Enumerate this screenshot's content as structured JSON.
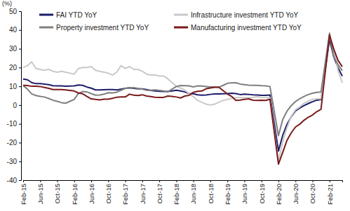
{
  "chart_data": {
    "type": "line",
    "y_label": "(%)",
    "categories": [
      "Feb-15",
      null,
      null,
      null,
      "Jun-15",
      null,
      null,
      null,
      "Oct-15",
      null,
      null,
      null,
      "Feb-16",
      null,
      null,
      null,
      "Jun-16",
      null,
      null,
      null,
      "Oct-16",
      null,
      null,
      null,
      "Feb-17",
      null,
      null,
      null,
      "Jun-17",
      null,
      null,
      null,
      "Oct-17",
      null,
      null,
      null,
      "Feb-18",
      null,
      null,
      null,
      "Jun-18",
      null,
      null,
      null,
      "Oct-18",
      null,
      null,
      null,
      "Feb-19",
      null,
      null,
      null,
      "Jun-19",
      null,
      null,
      null,
      "Oct-19",
      null,
      null,
      null,
      "Feb-20",
      null,
      null,
      null,
      "Jun-20",
      null,
      null,
      null,
      "Oct-20",
      null,
      null,
      null,
      "Feb-21",
      null,
      null,
      null
    ],
    "series": [
      {
        "name": "FAI YTD YoY",
        "color": "#1c1c6b",
        "values": [
          13.9,
          13.5,
          12.0,
          11.4,
          11.4,
          11.2,
          10.9,
          10.3,
          10.2,
          10.2,
          10.0,
          10.1,
          10.2,
          10.7,
          10.5,
          9.6,
          9.0,
          8.1,
          8.1,
          8.2,
          8.3,
          8.3,
          8.1,
          8.5,
          8.9,
          9.2,
          8.9,
          8.6,
          8.6,
          8.3,
          7.8,
          7.5,
          7.3,
          7.2,
          7.2,
          7.5,
          7.9,
          7.5,
          7.0,
          6.1,
          6.0,
          5.5,
          5.3,
          5.4,
          5.7,
          5.9,
          5.9,
          6.0,
          6.1,
          6.3,
          6.1,
          5.6,
          5.8,
          5.7,
          5.5,
          5.4,
          5.2,
          5.2,
          5.4,
          -9.5,
          -24.5,
          -16.1,
          -10.3,
          -6.3,
          -3.1,
          -1.6,
          -0.3,
          0.8,
          1.8,
          2.6,
          2.9,
          19.0,
          35.0,
          25.6,
          19.9,
          15.4
        ]
      },
      {
        "name": "Infrastructure investment YTD YoY",
        "color": "#c9c9c9",
        "values": [
          20,
          21,
          23,
          19.5,
          19,
          18.5,
          19,
          18,
          17.5,
          18,
          17.5,
          17,
          16.5,
          19.5,
          20,
          20,
          20.5,
          18.5,
          18,
          17.5,
          17,
          16,
          17.5,
          21,
          19.5,
          20.5,
          19,
          19,
          18,
          16.5,
          16,
          16,
          15.5,
          15.5,
          14,
          12,
          10,
          9,
          8,
          6,
          4.5,
          2.5,
          1.5,
          0.5,
          0,
          0.5,
          1.5,
          2.5,
          3,
          3.5,
          4,
          4,
          4,
          4,
          4,
          4.5,
          4,
          4,
          4,
          -13,
          -30,
          -19.5,
          -12,
          -6,
          -2.5,
          -1,
          1,
          2,
          3,
          3.3,
          3.4,
          20,
          36.6,
          29.7,
          18.4,
          11.8
        ]
      },
      {
        "name": "Property investment YTD YoY",
        "color": "#7f7f7f",
        "values": [
          10.4,
          8.5,
          6.0,
          5.1,
          4.6,
          4.3,
          3.5,
          2.6,
          2.0,
          1.3,
          1.0,
          2.0,
          3.0,
          6.2,
          7.2,
          7.0,
          6.1,
          5.3,
          5.4,
          5.8,
          6.6,
          6.5,
          6.9,
          7.9,
          8.9,
          9.1,
          9.3,
          8.8,
          8.5,
          7.9,
          7.9,
          8.1,
          7.8,
          7.5,
          7.0,
          8.5,
          9.9,
          10.4,
          10.3,
          10.2,
          9.7,
          10.2,
          10.1,
          9.9,
          9.7,
          9.7,
          9.5,
          10.5,
          11.6,
          11.8,
          11.9,
          11.2,
          10.9,
          10.6,
          10.5,
          10.5,
          10.3,
          10.2,
          9.9,
          -3.2,
          -16.3,
          -7.7,
          -3.3,
          -0.3,
          1.9,
          3.4,
          4.6,
          5.6,
          6.3,
          6.8,
          7.0,
          22.6,
          38.3,
          25.6,
          21.6,
          18.3
        ]
      },
      {
        "name": "Manufacturing investment YTD YoY",
        "color": "#7a1a1a",
        "values": [
          10.5,
          10.4,
          10.0,
          10.0,
          9.9,
          9.4,
          8.9,
          8.3,
          8.3,
          8.3,
          8.1,
          7.8,
          7.5,
          6.4,
          6.0,
          4.6,
          3.3,
          3.0,
          2.8,
          3.1,
          3.1,
          3.6,
          4.2,
          4.3,
          4.3,
          5.8,
          5.3,
          5.1,
          5.5,
          4.8,
          4.5,
          4.2,
          4.1,
          4.1,
          4.8,
          4.6,
          4.3,
          3.8,
          4.8,
          5.2,
          6.8,
          7.3,
          7.5,
          8.7,
          9.1,
          9.5,
          9.5,
          7.7,
          5.9,
          4.6,
          2.5,
          2.7,
          3.0,
          3.3,
          2.6,
          2.5,
          2.6,
          2.5,
          3.1,
          -14.2,
          -31.5,
          -25.2,
          -18.8,
          -14.8,
          -11.7,
          -10.2,
          -8.1,
          -6.5,
          -5.3,
          -3.5,
          -2.2,
          17.6,
          37.3,
          29.8,
          23.8,
          20.4
        ]
      }
    ],
    "ylim": [
      -40,
      50
    ],
    "yticks": [
      -40,
      -30,
      -20,
      -10,
      0,
      10,
      20,
      30,
      40,
      50
    ],
    "legend": "top"
  }
}
